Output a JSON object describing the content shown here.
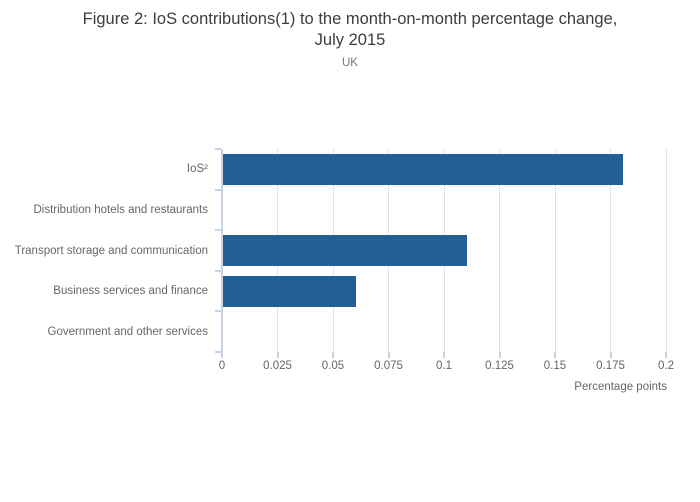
{
  "header": {
    "title_line1": "Figure 2: IoS contributions(1) to the month-on-month percentage change,",
    "title_line2": "July 2015",
    "subtitle": "UK"
  },
  "chart_data": {
    "type": "bar",
    "orientation": "horizontal",
    "title": "Figure 2: IoS contributions(1) to the month-on-month percentage change, July 2015",
    "subtitle": "UK",
    "categories": [
      "IoS²",
      "Distribution hotels and restaurants",
      "Transport storage and communication",
      "Business services and finance",
      "Government and other services"
    ],
    "values": [
      0.18,
      0,
      0.11,
      0.06,
      0
    ],
    "xlabel": "Percentage points",
    "xlim": [
      0,
      0.2
    ],
    "xticks": [
      0,
      0.025,
      0.05,
      0.075,
      0.1,
      0.125,
      0.15,
      0.175,
      0.2
    ],
    "xtick_labels": [
      "0",
      "0.025",
      "0.05",
      "0.075",
      "0.1",
      "0.125",
      "0.15",
      "0.175",
      "0.2"
    ],
    "grid": true,
    "legend": false,
    "colors": {
      "bar": "#215f94",
      "grid": "#e3e3e3",
      "axis": "#c8d4e3",
      "title_text": "#3d3d3d",
      "label_text": "#666666"
    }
  }
}
